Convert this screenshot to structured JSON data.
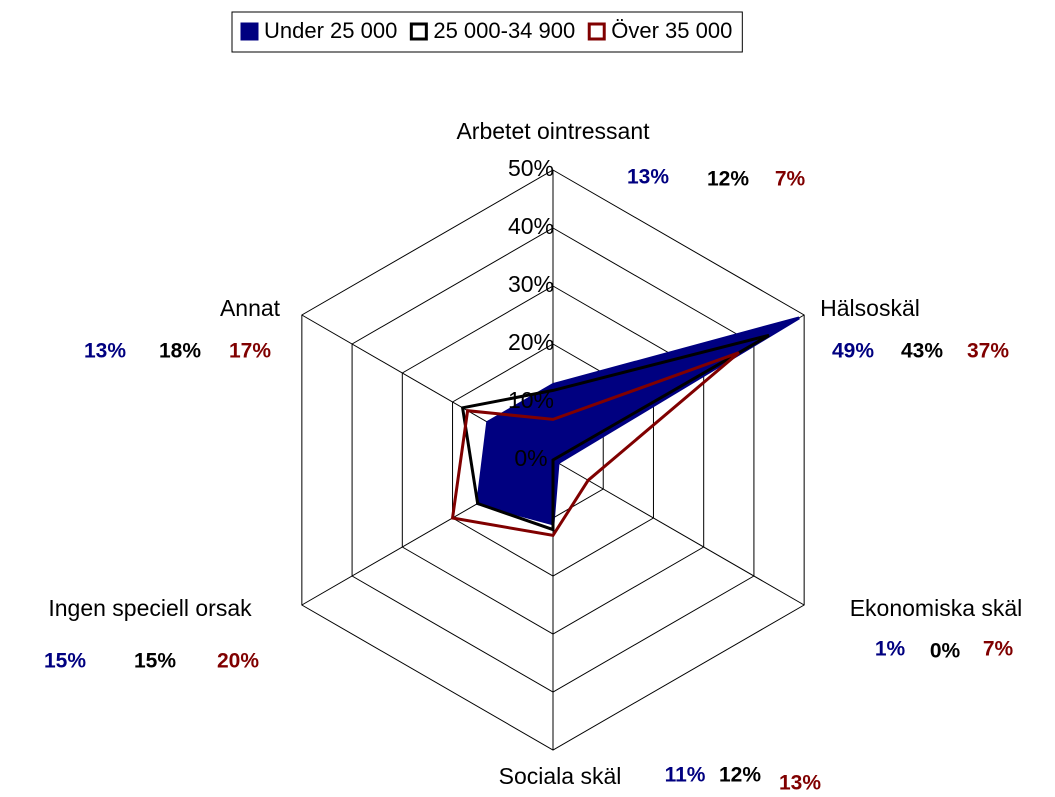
{
  "chart_data": {
    "type": "radar",
    "categories": [
      "Arbetet ointressant",
      "Hälsoskäl",
      "Ekonomiska skäl",
      "Sociala skäl",
      "Ingen speciell orsak",
      "Annat"
    ],
    "series": [
      {
        "name": "Under 25 000",
        "color": "#000080",
        "filled": true,
        "values": [
          13,
          49,
          1,
          11,
          15,
          13
        ],
        "value_labels": [
          "13%",
          "49%",
          "1%",
          "11%",
          "15%",
          "13%"
        ]
      },
      {
        "name": "25 000-34 900",
        "color": "#000000",
        "filled": false,
        "values": [
          12,
          43,
          0,
          12,
          15,
          18
        ],
        "value_labels": [
          "12%",
          "43%",
          "0%",
          "12%",
          "15%",
          "18%"
        ]
      },
      {
        "name": "Över 35 000",
        "color": "#800000",
        "filled": false,
        "values": [
          7,
          37,
          7,
          13,
          20,
          17
        ],
        "value_labels": [
          "7%",
          "37%",
          "7%",
          "13%",
          "20%",
          "17%"
        ]
      }
    ],
    "rlim": [
      0,
      50
    ],
    "rticks": [
      {
        "value": 0,
        "label": "0%"
      },
      {
        "value": 10,
        "label": "10%"
      },
      {
        "value": 20,
        "label": "20%"
      },
      {
        "value": 30,
        "label": "30%"
      },
      {
        "value": 40,
        "label": "40%"
      },
      {
        "value": 50,
        "label": "50%"
      }
    ],
    "legend": "top"
  }
}
